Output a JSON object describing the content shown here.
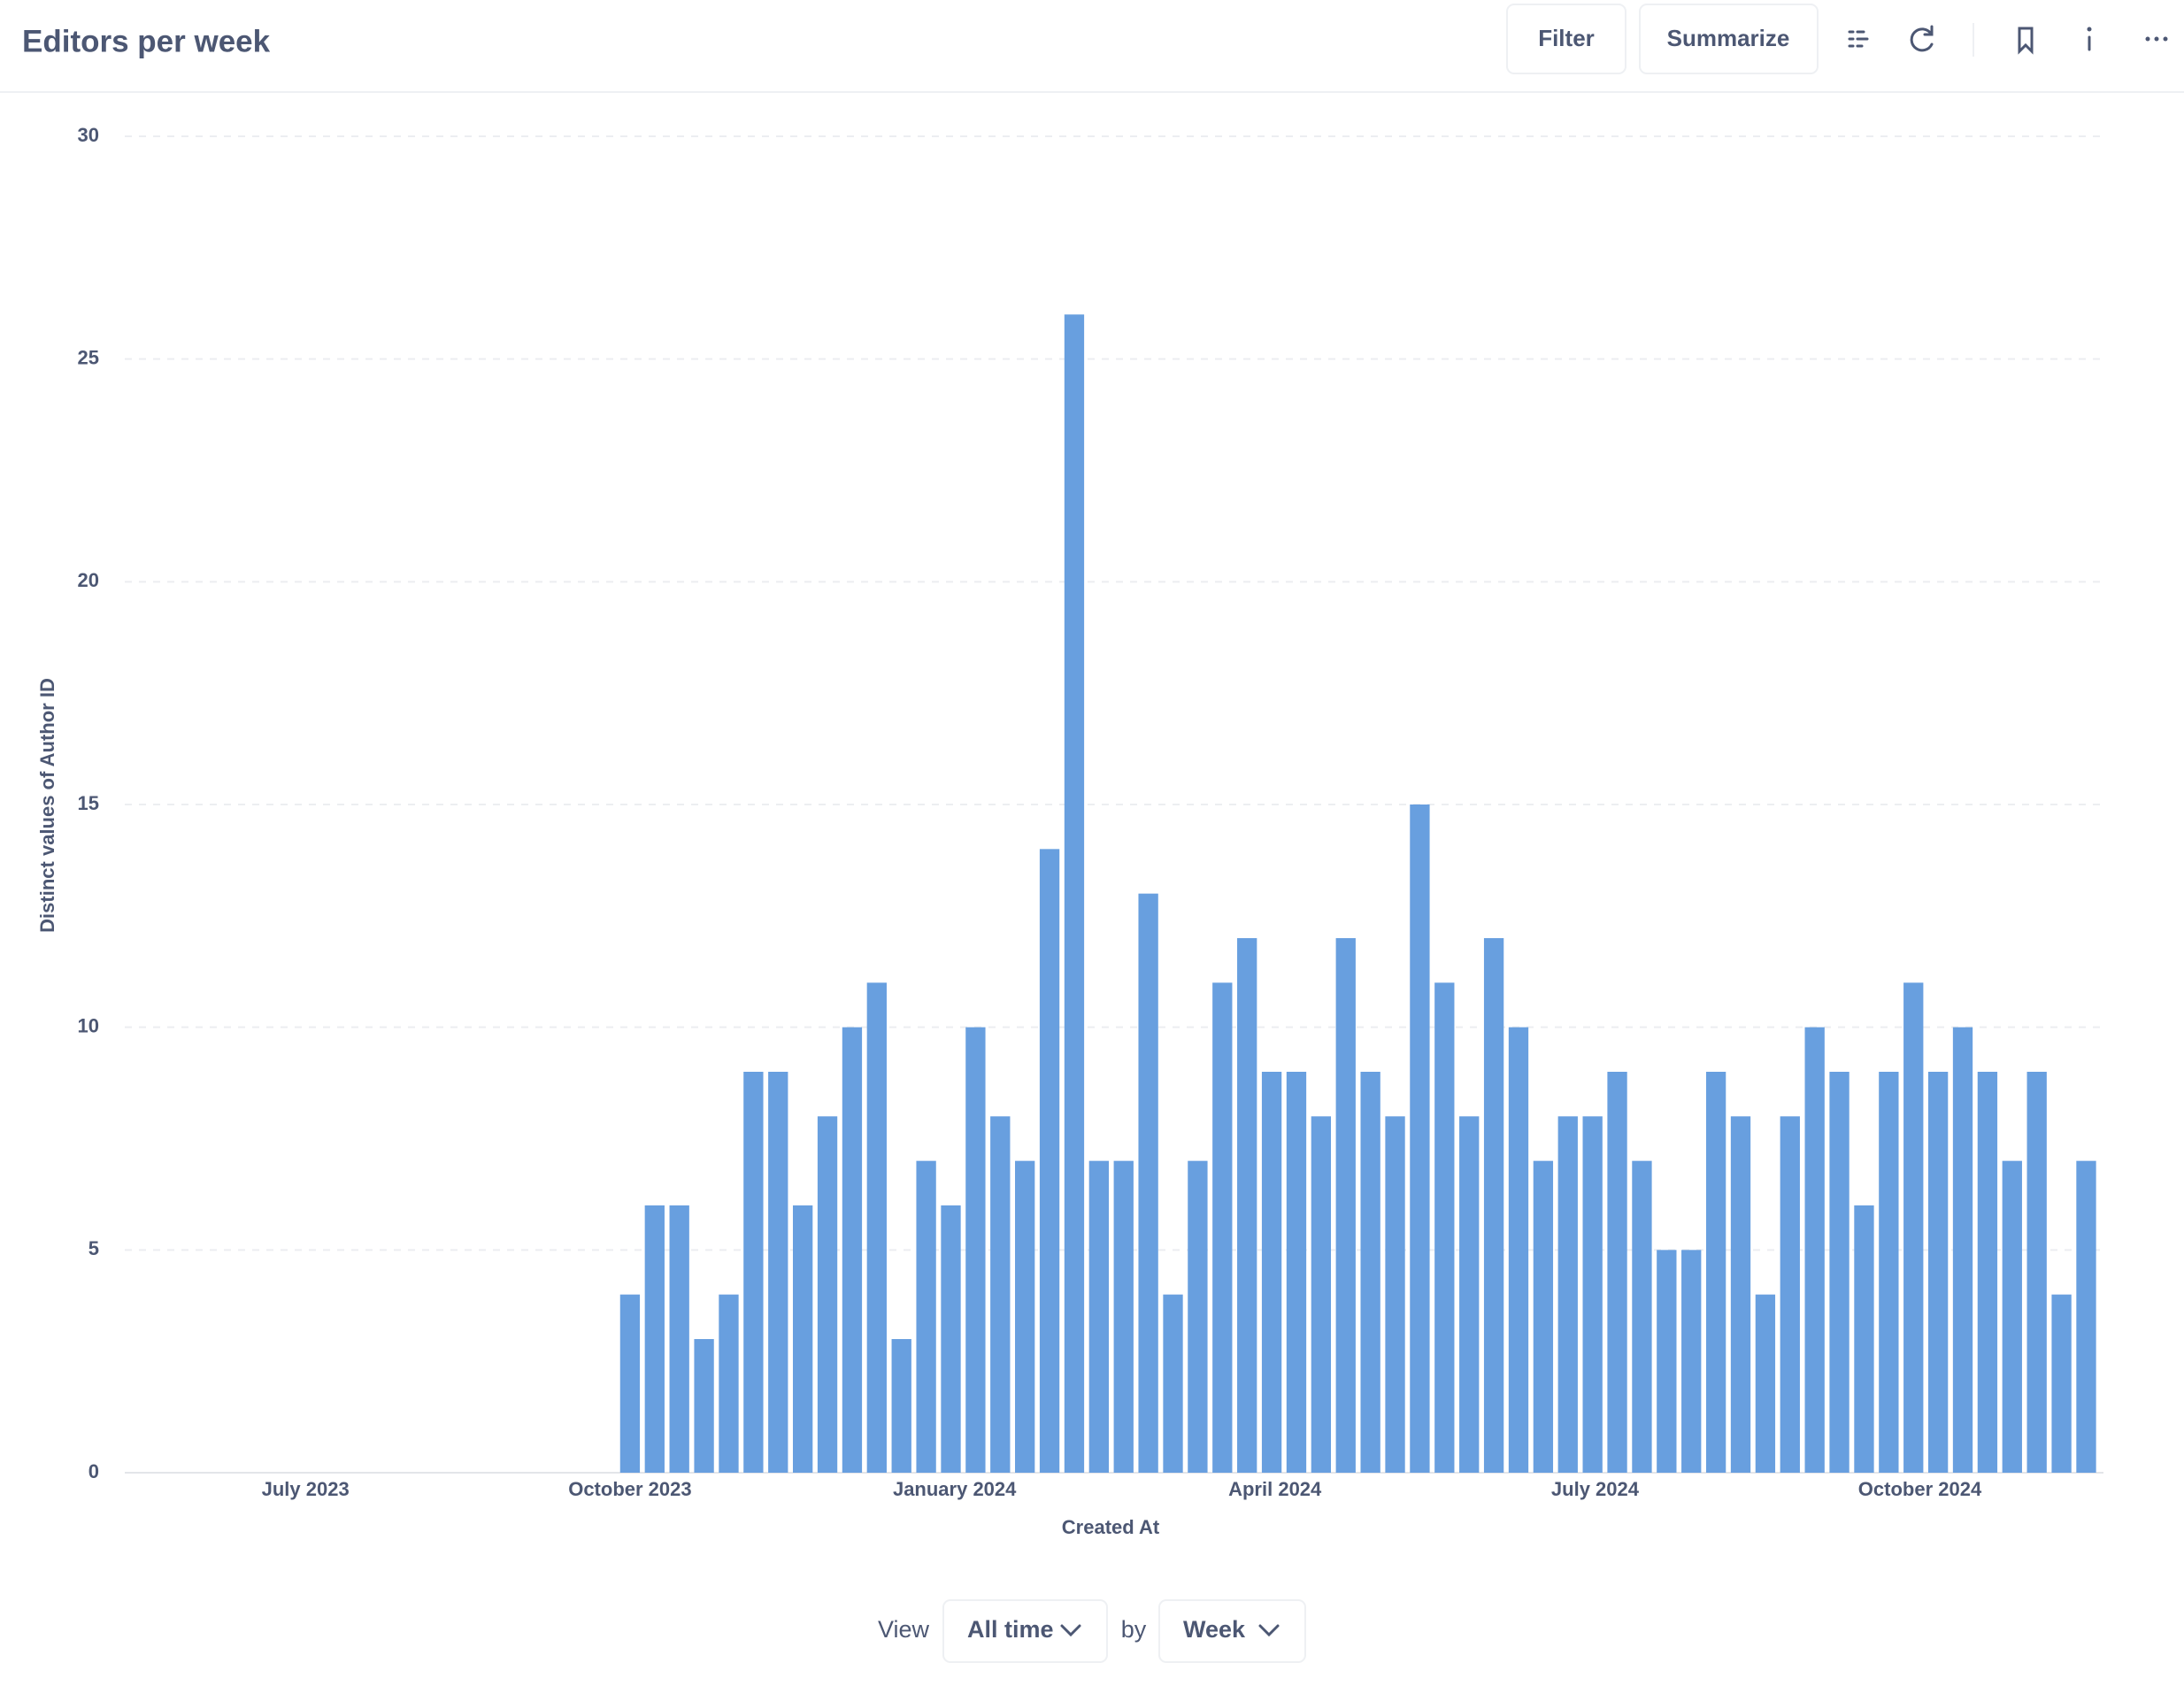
{
  "header": {
    "title": "Editors per week",
    "buttons": [
      "Filter",
      "Summarize"
    ]
  },
  "chart_data": {
    "type": "bar",
    "categories": [
      null,
      null,
      null,
      null,
      null,
      null,
      null,
      null,
      null,
      null,
      null,
      null,
      null,
      null,
      null,
      null,
      null,
      null,
      null,
      null,
      null,
      null,
      null,
      null,
      null,
      null,
      null,
      null,
      null,
      null,
      null,
      null,
      null,
      null,
      null,
      null,
      null,
      null,
      null,
      null,
      null,
      null,
      null,
      null,
      null,
      null,
      null,
      null,
      null,
      null,
      null,
      null,
      null,
      null,
      null,
      null,
      null,
      null,
      null,
      null
    ],
    "values": [
      4,
      6,
      6,
      3,
      4,
      9,
      9,
      6,
      8,
      10,
      11,
      3,
      7,
      6,
      10,
      8,
      7,
      14,
      26,
      7,
      7,
      13,
      4,
      7,
      11,
      12,
      9,
      9,
      8,
      12,
      9,
      8,
      15,
      11,
      8,
      12,
      10,
      7,
      8,
      8,
      9,
      7,
      5,
      5,
      9,
      8,
      4,
      8,
      10,
      9,
      6,
      9,
      11,
      9,
      10,
      9,
      7,
      9,
      4,
      7
    ],
    "color": "#689fdf",
    "ylim": [
      0,
      30
    ],
    "yticks": [
      0,
      5,
      10,
      15,
      20,
      25,
      30
    ],
    "grid": true,
    "xlim": [
      -20.9,
      59.7
    ],
    "xticks": [
      {
        "value": -13.15,
        "label": "July 2023"
      },
      {
        "value": 0,
        "label": "October 2023"
      },
      {
        "value": 13.15,
        "label": "January 2024"
      },
      {
        "value": 26.13,
        "label": "April 2024"
      },
      {
        "value": 39.1,
        "label": "July 2024"
      },
      {
        "value": 52.26,
        "label": "October 2024"
      }
    ],
    "x_label": "Created At",
    "y_label": "Distinct values of Author ID"
  },
  "footer": {
    "view": "View",
    "range": "All time",
    "by": "by",
    "unit": "Week"
  }
}
